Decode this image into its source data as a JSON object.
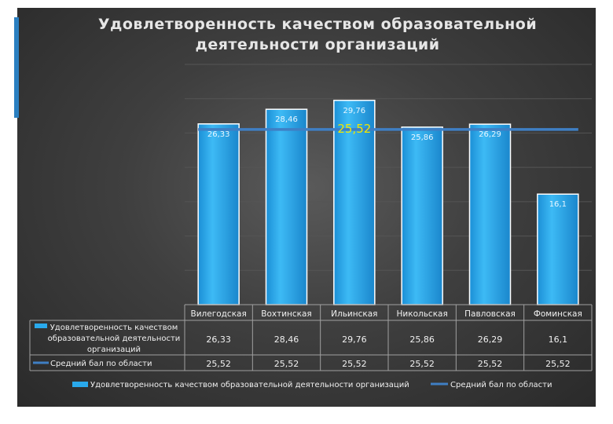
{
  "chart_data": {
    "type": "bar",
    "title_line1": "Удовлетворенность качеством  образовательной",
    "title_line2": "деятельности организаций",
    "categories": [
      "Вилегодская",
      "Вохтинская",
      "Ильинская",
      "Никольская",
      "Павловская",
      "Фоминская"
    ],
    "series": [
      {
        "name": "Удовлетворенность качеством образовательной деятельности организаций",
        "name_lines": [
          "Удовлетворенность качеством",
          "образовательной деятельности",
          "организаций"
        ],
        "kind": "bar",
        "color": "#29a9ec",
        "values": [
          26.33,
          28.46,
          29.76,
          25.86,
          26.29,
          16.1
        ],
        "labels": [
          "26,33",
          "28,46",
          "29,76",
          "25,86",
          "26,29",
          "16,1"
        ]
      },
      {
        "name": "Средний бал  по области",
        "kind": "line",
        "color": "#3f7fc4",
        "values": [
          25.52,
          25.52,
          25.52,
          25.52,
          25.52,
          25.52
        ],
        "labels": [
          "25,52",
          "25,52",
          "25,52",
          "25,52",
          "25,52",
          "25,52"
        ]
      }
    ],
    "average_label": "25,52",
    "average_label_color": "#f2e600",
    "legend_bottom": [
      "Удовлетворенность качеством  образовательной деятельности организаций",
      "Средний бал  по области"
    ],
    "ylim": [
      0,
      35
    ],
    "grid": true,
    "legend": "bottom",
    "data_table": true
  }
}
